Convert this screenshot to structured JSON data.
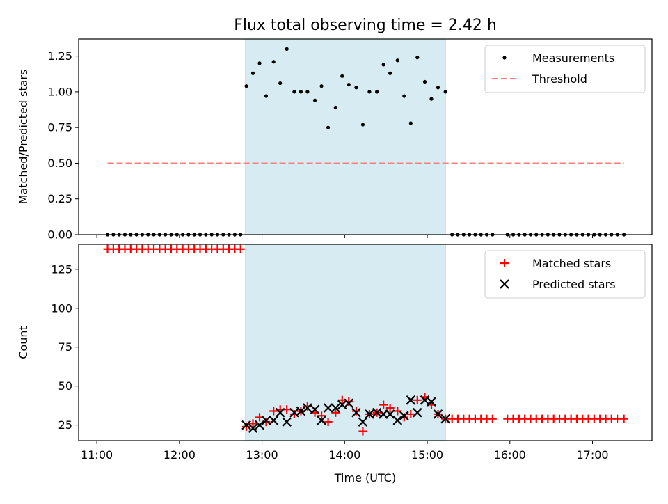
{
  "chart_data": {
    "title": "Flux total observing time = 2.42 h",
    "xlabel": "Time (UTC)",
    "x_unit": "hours UTC",
    "x_ticks": [
      {
        "value": 11,
        "label": "11:00"
      },
      {
        "value": 12,
        "label": "12:00"
      },
      {
        "value": 13,
        "label": "13:00"
      },
      {
        "value": 14,
        "label": "14:00"
      },
      {
        "value": 15,
        "label": "15:00"
      },
      {
        "value": 16,
        "label": "16:00"
      },
      {
        "value": 17,
        "label": "17:00"
      }
    ],
    "xlim": [
      10.78,
      17.72
    ],
    "shaded_span": {
      "from": 12.8,
      "to": 15.22,
      "color": "#add8e6"
    },
    "panels": [
      {
        "type": "scatter",
        "ylabel": "Matched/Predicted stars",
        "ylim": [
          0,
          1.37
        ],
        "y_ticks": [
          {
            "value": 0,
            "label": "0.00"
          },
          {
            "value": 0.25,
            "label": "0.25"
          },
          {
            "value": 0.5,
            "label": "0.50"
          },
          {
            "value": 0.75,
            "label": "0.75"
          },
          {
            "value": 1.0,
            "label": "1.00"
          },
          {
            "value": 1.25,
            "label": "1.25"
          }
        ],
        "legend_position": "top-right",
        "series": [
          {
            "name": "Measurements",
            "marker": "dot",
            "color": "#000000",
            "points": [
              [
                11.13,
                0
              ],
              [
                11.2,
                0
              ],
              [
                11.27,
                0
              ],
              [
                11.34,
                0
              ],
              [
                11.41,
                0
              ],
              [
                11.48,
                0
              ],
              [
                11.55,
                0
              ],
              [
                11.62,
                0
              ],
              [
                11.69,
                0
              ],
              [
                11.76,
                0
              ],
              [
                11.83,
                0
              ],
              [
                11.9,
                0
              ],
              [
                11.97,
                0
              ],
              [
                12.04,
                0
              ],
              [
                12.11,
                0
              ],
              [
                12.18,
                0
              ],
              [
                12.25,
                0
              ],
              [
                12.32,
                0
              ],
              [
                12.39,
                0
              ],
              [
                12.46,
                0
              ],
              [
                12.53,
                0
              ],
              [
                12.6,
                0
              ],
              [
                12.67,
                0
              ],
              [
                12.74,
                0
              ],
              [
                12.81,
                1.04
              ],
              [
                12.89,
                1.13
              ],
              [
                12.97,
                1.2
              ],
              [
                13.05,
                0.97
              ],
              [
                13.14,
                1.21
              ],
              [
                13.22,
                1.06
              ],
              [
                13.3,
                1.3
              ],
              [
                13.39,
                1.0
              ],
              [
                13.47,
                1.0
              ],
              [
                13.55,
                1.0
              ],
              [
                13.64,
                0.94
              ],
              [
                13.72,
                1.04
              ],
              [
                13.8,
                0.75
              ],
              [
                13.89,
                0.89
              ],
              [
                13.97,
                1.11
              ],
              [
                14.05,
                1.05
              ],
              [
                14.14,
                1.03
              ],
              [
                14.22,
                0.77
              ],
              [
                14.3,
                1.0
              ],
              [
                14.39,
                1.0
              ],
              [
                14.47,
                1.19
              ],
              [
                14.55,
                1.13
              ],
              [
                14.64,
                1.22
              ],
              [
                14.72,
                0.97
              ],
              [
                14.8,
                0.78
              ],
              [
                14.88,
                1.24
              ],
              [
                14.97,
                1.07
              ],
              [
                15.05,
                0.95
              ],
              [
                15.13,
                1.03
              ],
              [
                15.22,
                1.0
              ],
              [
                15.3,
                0
              ],
              [
                15.37,
                0
              ],
              [
                15.44,
                0
              ],
              [
                15.51,
                0
              ],
              [
                15.58,
                0
              ],
              [
                15.65,
                0
              ],
              [
                15.72,
                0
              ],
              [
                15.79,
                0
              ],
              [
                15.97,
                0
              ],
              [
                16.04,
                0
              ],
              [
                16.11,
                0
              ],
              [
                16.18,
                0
              ],
              [
                16.25,
                0
              ],
              [
                16.32,
                0
              ],
              [
                16.39,
                0
              ],
              [
                16.46,
                0
              ],
              [
                16.53,
                0
              ],
              [
                16.6,
                0
              ],
              [
                16.67,
                0
              ],
              [
                16.74,
                0
              ],
              [
                16.81,
                0
              ],
              [
                16.88,
                0
              ],
              [
                16.95,
                0
              ],
              [
                17.02,
                0
              ],
              [
                17.09,
                0
              ],
              [
                17.16,
                0
              ],
              [
                17.23,
                0
              ],
              [
                17.3,
                0
              ],
              [
                17.38,
                0
              ]
            ]
          },
          {
            "name": "Threshold",
            "marker": "dashed-line",
            "color": "#ff7f7f",
            "points": [
              [
                11.13,
                0.5
              ],
              [
                17.38,
                0.5
              ]
            ]
          }
        ]
      },
      {
        "type": "scatter",
        "ylabel": "Count",
        "ylim": [
          15,
          141
        ],
        "y_ticks": [
          {
            "value": 25,
            "label": "25"
          },
          {
            "value": 50,
            "label": "50"
          },
          {
            "value": 75,
            "label": "75"
          },
          {
            "value": 100,
            "label": "100"
          },
          {
            "value": 125,
            "label": "125"
          }
        ],
        "legend_position": "top-right",
        "series": [
          {
            "name": "Matched stars",
            "marker": "plus",
            "color": "#ff0000",
            "points": [
              [
                11.13,
                138
              ],
              [
                11.2,
                138
              ],
              [
                11.27,
                138
              ],
              [
                11.34,
                138
              ],
              [
                11.41,
                138
              ],
              [
                11.48,
                138
              ],
              [
                11.55,
                138
              ],
              [
                11.62,
                138
              ],
              [
                11.69,
                138
              ],
              [
                11.76,
                138
              ],
              [
                11.83,
                138
              ],
              [
                11.9,
                138
              ],
              [
                11.97,
                138
              ],
              [
                12.04,
                138
              ],
              [
                12.11,
                138
              ],
              [
                12.18,
                138
              ],
              [
                12.25,
                138
              ],
              [
                12.32,
                138
              ],
              [
                12.39,
                138
              ],
              [
                12.46,
                138
              ],
              [
                12.53,
                138
              ],
              [
                12.6,
                138
              ],
              [
                12.67,
                138
              ],
              [
                12.74,
                138
              ],
              [
                12.81,
                24
              ],
              [
                12.89,
                26
              ],
              [
                12.97,
                30
              ],
              [
                13.05,
                27
              ],
              [
                13.14,
                34
              ],
              [
                13.22,
                35
              ],
              [
                13.3,
                35
              ],
              [
                13.39,
                32
              ],
              [
                13.47,
                34
              ],
              [
                13.55,
                37
              ],
              [
                13.64,
                33
              ],
              [
                13.72,
                31
              ],
              [
                13.8,
                27
              ],
              [
                13.89,
                33
              ],
              [
                13.97,
                41
              ],
              [
                14.05,
                40
              ],
              [
                14.14,
                34
              ],
              [
                14.22,
                21
              ],
              [
                14.3,
                32
              ],
              [
                14.39,
                33
              ],
              [
                14.47,
                38
              ],
              [
                14.55,
                36
              ],
              [
                14.64,
                34
              ],
              [
                14.72,
                30
              ],
              [
                14.8,
                32
              ],
              [
                14.88,
                41
              ],
              [
                14.97,
                43
              ],
              [
                15.05,
                38
              ],
              [
                15.13,
                32
              ],
              [
                15.22,
                29
              ],
              [
                15.3,
                29
              ],
              [
                15.37,
                29
              ],
              [
                15.44,
                29
              ],
              [
                15.51,
                29
              ],
              [
                15.58,
                29
              ],
              [
                15.65,
                29
              ],
              [
                15.72,
                29
              ],
              [
                15.79,
                29
              ],
              [
                15.97,
                29
              ],
              [
                16.04,
                29
              ],
              [
                16.11,
                29
              ],
              [
                16.18,
                29
              ],
              [
                16.25,
                29
              ],
              [
                16.32,
                29
              ],
              [
                16.39,
                29
              ],
              [
                16.46,
                29
              ],
              [
                16.53,
                29
              ],
              [
                16.6,
                29
              ],
              [
                16.67,
                29
              ],
              [
                16.74,
                29
              ],
              [
                16.81,
                29
              ],
              [
                16.88,
                29
              ],
              [
                16.95,
                29
              ],
              [
                17.02,
                29
              ],
              [
                17.09,
                29
              ],
              [
                17.16,
                29
              ],
              [
                17.23,
                29
              ],
              [
                17.3,
                29
              ],
              [
                17.38,
                29
              ]
            ]
          },
          {
            "name": "Predicted stars",
            "marker": "x",
            "color": "#000000",
            "points": [
              [
                12.81,
                25
              ],
              [
                12.89,
                23
              ],
              [
                12.97,
                25
              ],
              [
                13.05,
                28
              ],
              [
                13.14,
                28
              ],
              [
                13.22,
                33
              ],
              [
                13.3,
                27
              ],
              [
                13.39,
                33
              ],
              [
                13.47,
                34
              ],
              [
                13.55,
                36
              ],
              [
                13.64,
                35
              ],
              [
                13.72,
                28
              ],
              [
                13.8,
                36
              ],
              [
                13.89,
                36
              ],
              [
                13.97,
                38
              ],
              [
                14.05,
                39
              ],
              [
                14.14,
                33
              ],
              [
                14.22,
                27
              ],
              [
                14.3,
                32
              ],
              [
                14.39,
                33
              ],
              [
                14.47,
                32
              ],
              [
                14.55,
                32
              ],
              [
                14.64,
                28
              ],
              [
                14.72,
                31
              ],
              [
                14.8,
                41
              ],
              [
                14.88,
                33
              ],
              [
                14.97,
                41
              ],
              [
                15.05,
                40
              ],
              [
                15.13,
                32
              ],
              [
                15.22,
                29
              ]
            ]
          }
        ]
      }
    ]
  }
}
